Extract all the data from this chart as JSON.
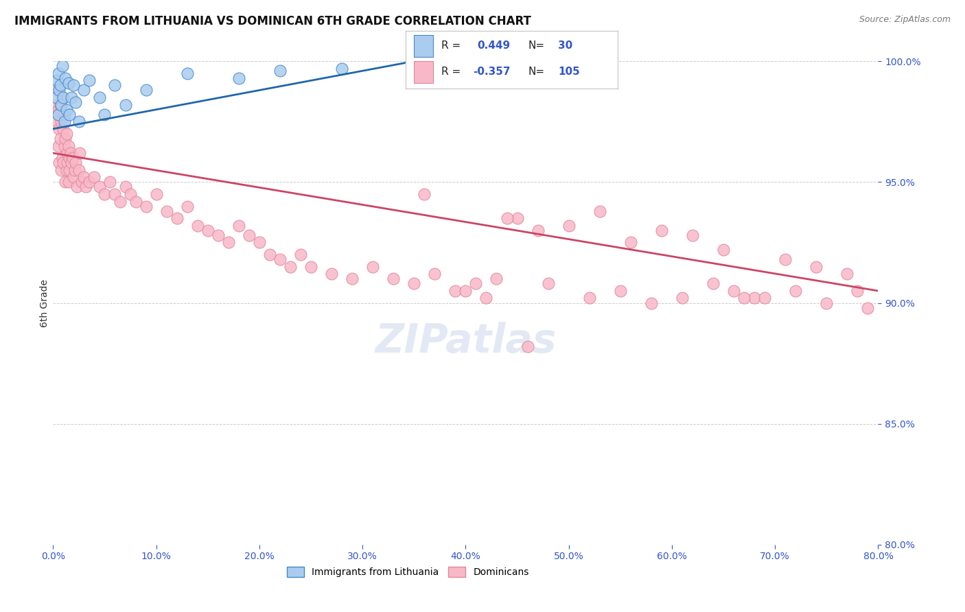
{
  "title": "IMMIGRANTS FROM LITHUANIA VS DOMINICAN 6TH GRADE CORRELATION CHART",
  "source": "Source: ZipAtlas.com",
  "ylabel": "6th Grade",
  "xlim": [
    0.0,
    80.0
  ],
  "ylim": [
    80.0,
    100.0
  ],
  "xticks": [
    0.0,
    10.0,
    20.0,
    30.0,
    40.0,
    50.0,
    60.0,
    70.0,
    80.0
  ],
  "yticks": [
    80.0,
    85.0,
    90.0,
    95.0,
    100.0
  ],
  "xtick_labels": [
    "0.0%",
    "10.0%",
    "20.0%",
    "30.0%",
    "40.0%",
    "50.0%",
    "60.0%",
    "70.0%",
    "80.0%"
  ],
  "ytick_labels": [
    "80.0%",
    "85.0%",
    "90.0%",
    "95.0%",
    "100.0%"
  ],
  "legend_label1": "Immigrants from Lithuania",
  "legend_label2": "Dominicans",
  "r1": 0.449,
  "n1": 30,
  "r2": -0.357,
  "n2": 105,
  "color_blue_fill": "#aaccee",
  "color_blue_edge": "#4488cc",
  "color_pink_fill": "#f8b8c8",
  "color_pink_edge": "#e08898",
  "color_blue_line": "#2266aa",
  "color_pink_line": "#cc4466",
  "color_axis_labels": "#3355cc",
  "color_source": "#777777",
  "watermark": "ZIPatlas",
  "blue_trend_x0": 0.0,
  "blue_trend_y0": 97.2,
  "blue_trend_x1": 35.0,
  "blue_trend_y1": 100.0,
  "pink_trend_x0": 0.0,
  "pink_trend_y0": 96.2,
  "pink_trend_x1": 80.0,
  "pink_trend_y1": 90.5,
  "blue_x": [
    0.3,
    0.4,
    0.5,
    0.5,
    0.6,
    0.7,
    0.8,
    0.9,
    1.0,
    1.1,
    1.2,
    1.3,
    1.5,
    1.6,
    1.8,
    2.0,
    2.2,
    2.5,
    3.0,
    3.5,
    4.5,
    5.0,
    6.0,
    7.0,
    9.0,
    13.0,
    18.0,
    22.0,
    28.0,
    35.0
  ],
  "blue_y": [
    98.5,
    99.2,
    97.8,
    99.5,
    98.8,
    99.0,
    98.2,
    99.8,
    98.5,
    97.5,
    99.3,
    98.0,
    99.1,
    97.8,
    98.5,
    99.0,
    98.3,
    97.5,
    98.8,
    99.2,
    98.5,
    97.8,
    99.0,
    98.2,
    98.8,
    99.5,
    99.3,
    99.6,
    99.7,
    99.8
  ],
  "pink_x": [
    0.2,
    0.3,
    0.4,
    0.5,
    0.5,
    0.6,
    0.6,
    0.7,
    0.7,
    0.8,
    0.8,
    0.9,
    0.9,
    1.0,
    1.0,
    1.1,
    1.1,
    1.2,
    1.2,
    1.3,
    1.3,
    1.4,
    1.4,
    1.5,
    1.5,
    1.6,
    1.6,
    1.7,
    1.8,
    1.9,
    2.0,
    2.1,
    2.2,
    2.3,
    2.5,
    2.6,
    2.8,
    3.0,
    3.2,
    3.5,
    4.0,
    4.5,
    5.0,
    5.5,
    6.0,
    6.5,
    7.0,
    7.5,
    8.0,
    9.0,
    10.0,
    11.0,
    12.0,
    13.0,
    14.0,
    15.0,
    16.0,
    17.0,
    18.0,
    19.0,
    20.0,
    21.0,
    22.0,
    23.0,
    24.0,
    25.0,
    27.0,
    29.0,
    31.0,
    33.0,
    35.0,
    37.0,
    39.0,
    41.0,
    43.0,
    45.0,
    47.0,
    50.0,
    53.0,
    56.0,
    59.0,
    62.0,
    65.0,
    68.0,
    71.0,
    74.0,
    77.0,
    78.0,
    40.0,
    42.0,
    48.0,
    52.0,
    55.0,
    58.0,
    61.0,
    64.0,
    66.0,
    69.0,
    72.0,
    75.0,
    79.0,
    36.0,
    44.0,
    46.0,
    67.0
  ],
  "pink_y": [
    98.2,
    97.5,
    98.8,
    96.5,
    98.0,
    97.2,
    95.8,
    96.8,
    98.2,
    95.5,
    97.5,
    96.0,
    98.5,
    95.8,
    97.2,
    96.5,
    97.8,
    95.0,
    96.8,
    95.5,
    97.0,
    96.2,
    95.8,
    96.5,
    95.0,
    96.0,
    95.5,
    96.2,
    95.8,
    96.0,
    95.2,
    95.5,
    95.8,
    94.8,
    95.5,
    96.2,
    95.0,
    95.2,
    94.8,
    95.0,
    95.2,
    94.8,
    94.5,
    95.0,
    94.5,
    94.2,
    94.8,
    94.5,
    94.2,
    94.0,
    94.5,
    93.8,
    93.5,
    94.0,
    93.2,
    93.0,
    92.8,
    92.5,
    93.2,
    92.8,
    92.5,
    92.0,
    91.8,
    91.5,
    92.0,
    91.5,
    91.2,
    91.0,
    91.5,
    91.0,
    90.8,
    91.2,
    90.5,
    90.8,
    91.0,
    93.5,
    93.0,
    93.2,
    93.8,
    92.5,
    93.0,
    92.8,
    92.2,
    90.2,
    91.8,
    91.5,
    91.2,
    90.5,
    90.5,
    90.2,
    90.8,
    90.2,
    90.5,
    90.0,
    90.2,
    90.8,
    90.5,
    90.2,
    90.5,
    90.0,
    89.8,
    94.5,
    93.5,
    88.2,
    90.2
  ]
}
